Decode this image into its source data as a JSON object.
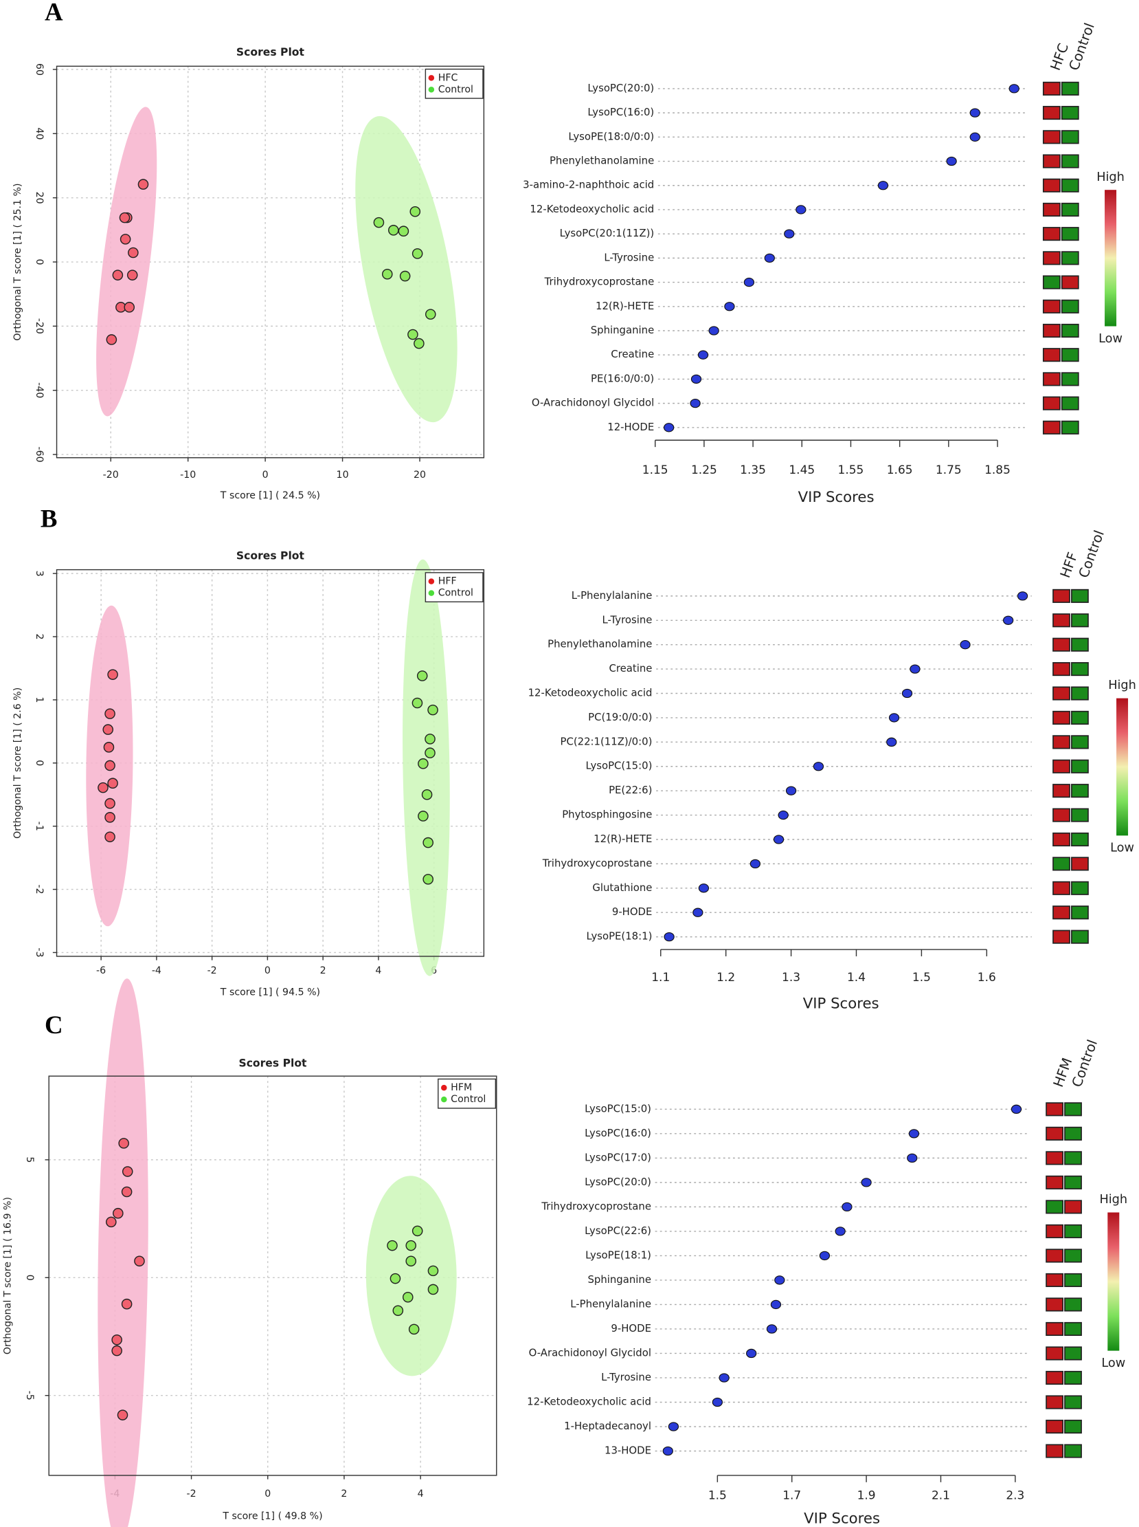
{
  "panel_labels": [
    "A",
    "B",
    "C"
  ],
  "chart_data": [
    {
      "type": "scatter",
      "title": "Scores Plot",
      "x_label": "T score [1] ( 24.5 %)",
      "y_label": "Orthogonal T score [1] ( 25.1 %)",
      "xlim": [
        -27,
        28.3
      ],
      "ylim": [
        -61,
        61
      ],
      "xticks": [
        -20,
        -10,
        0,
        10,
        20
      ],
      "yticks": [
        -60,
        -40,
        -20,
        0,
        20,
        40,
        60
      ],
      "grid": true,
      "series": [
        {
          "name": "HFC",
          "color": "#e41a1c",
          "point_color": "#f0606f",
          "ellipse_color": "#f7b3cd",
          "x": [
            -15.8,
            -17.9,
            -18.2,
            -18.1,
            -17.1,
            -19.1,
            -17.2,
            -18.7,
            -17.6,
            -19.9
          ],
          "values": [
            24.2,
            13.8,
            13.8,
            7.1,
            2.9,
            -4.1,
            -4.1,
            -14.1,
            -14.1,
            -24.2
          ]
        },
        {
          "name": "Control",
          "color": "#4ddd3a",
          "point_color": "#8ee85f",
          "ellipse_color": "#cdf7b8",
          "x": [
            14.7,
            16.6,
            17.9,
            19.4,
            19.7,
            15.8,
            18.1,
            21.4,
            19.1,
            19.9
          ],
          "values": [
            12.3,
            9.9,
            9.6,
            15.7,
            2.6,
            -3.8,
            -4.4,
            -16.3,
            -22.6,
            -25.4
          ]
        }
      ]
    },
    {
      "type": "dot",
      "x_label": "VIP Scores",
      "xlim": [
        1.13,
        1.91
      ],
      "xticks": [
        1.15,
        1.25,
        1.35,
        1.45,
        1.55,
        1.65,
        1.75,
        1.85
      ],
      "color": "#2a3bd6",
      "categories": [
        "LysoPC(20:0)",
        "LysoPC(16:0)",
        "LysoPE(18:0/0:0)",
        "Phenylethanolamine",
        "3-amino-2-naphthoic acid",
        "12-Ketodeoxycholic acid",
        "LysoPC(20:1(11Z))",
        "L-Tyrosine",
        "Trihydroxycoprostane",
        "12(R)-HETE",
        "Sphinganine",
        "Creatine",
        "PE(16:0/0:0)",
        "O-Arachidonoyl Glycidol",
        "12-HODE"
      ],
      "values": [
        1.884,
        1.804,
        1.804,
        1.756,
        1.616,
        1.448,
        1.424,
        1.384,
        1.342,
        1.302,
        1.27,
        1.248,
        1.234,
        1.232,
        1.178
      ],
      "heatmap": {
        "columns": [
          "HFC",
          "Control"
        ],
        "high": "High",
        "low": "Low",
        "cells": [
          [
            "#c0191c",
            "#1b8a1b"
          ],
          [
            "#c0191c",
            "#1b8a1b"
          ],
          [
            "#c0191c",
            "#1b8a1b"
          ],
          [
            "#c0191c",
            "#1b8a1b"
          ],
          [
            "#c0191c",
            "#1b8a1b"
          ],
          [
            "#c0191c",
            "#1b8a1b"
          ],
          [
            "#c0191c",
            "#1b8a1b"
          ],
          [
            "#c0191c",
            "#1b8a1b"
          ],
          [
            "#1b8a1b",
            "#c0191c"
          ],
          [
            "#c0191c",
            "#1b8a1b"
          ],
          [
            "#c0191c",
            "#1b8a1b"
          ],
          [
            "#c0191c",
            "#1b8a1b"
          ],
          [
            "#c0191c",
            "#1b8a1b"
          ],
          [
            "#c0191c",
            "#1b8a1b"
          ],
          [
            "#c0191c",
            "#1b8a1b"
          ]
        ]
      }
    },
    {
      "type": "scatter",
      "title": "Scores Plot",
      "x_label": "T score [1] ( 94.5 %)",
      "y_label": "Orthogonal T score [1] ( 2.6 %)",
      "xlim": [
        -7.6,
        7.8
      ],
      "ylim": [
        -3.06,
        3.06
      ],
      "xticks": [
        -6,
        -4,
        -2,
        0,
        2,
        4,
        6
      ],
      "yticks": [
        -3,
        -2,
        -1,
        0,
        1,
        2,
        3
      ],
      "grid": true,
      "series": [
        {
          "name": "HFF",
          "color": "#e41a1c",
          "point_color": "#f0606f",
          "ellipse_color": "#f7b3cd",
          "x": [
            -5.58,
            -5.68,
            -5.75,
            -5.72,
            -5.68,
            -5.58,
            -5.93,
            -5.68,
            -5.68,
            -5.68
          ],
          "values": [
            1.4,
            0.78,
            0.53,
            0.25,
            -0.04,
            -0.32,
            -0.39,
            -0.64,
            -0.86,
            -1.17
          ]
        },
        {
          "name": "Control",
          "color": "#4ddd3a",
          "point_color": "#8ee85f",
          "ellipse_color": "#cdf7b8",
          "x": [
            5.58,
            5.4,
            5.96,
            5.86,
            5.86,
            5.61,
            5.75,
            5.61,
            5.79,
            5.79
          ],
          "values": [
            1.38,
            0.95,
            0.84,
            0.38,
            0.16,
            -0.01,
            -0.5,
            -0.84,
            -1.26,
            -1.84
          ]
        }
      ]
    },
    {
      "type": "dot",
      "x_label": "VIP Scores",
      "xlim": [
        1.084,
        1.669
      ],
      "xticks": [
        1.1,
        1.2,
        1.3,
        1.4,
        1.5,
        1.6
      ],
      "color": "#2a3bd6",
      "categories": [
        "L-Phenylalanine",
        "L-Tyrosine",
        "Phenylethanolamine",
        "Creatine",
        "12-Ketodeoxycholic acid",
        "PC(19:0/0:0)",
        "PC(22:1(11Z)/0:0)",
        "LysoPC(15:0)",
        "PE(22:6)",
        "Phytosphingosine",
        "12(R)-HETE",
        "Trihydroxycoprostane",
        "Glutathione",
        "9-HODE",
        "LysoPE(18:1)"
      ],
      "values": [
        1.655,
        1.633,
        1.567,
        1.49,
        1.478,
        1.458,
        1.454,
        1.342,
        1.3,
        1.288,
        1.281,
        1.245,
        1.166,
        1.157,
        1.113
      ],
      "heatmap": {
        "columns": [
          "HFF",
          "Control"
        ],
        "high": "High",
        "low": "Low",
        "cells": [
          [
            "#c0191c",
            "#1b8a1b"
          ],
          [
            "#c0191c",
            "#1b8a1b"
          ],
          [
            "#c0191c",
            "#1b8a1b"
          ],
          [
            "#c0191c",
            "#1b8a1b"
          ],
          [
            "#c0191c",
            "#1b8a1b"
          ],
          [
            "#c0191c",
            "#1b8a1b"
          ],
          [
            "#c0191c",
            "#1b8a1b"
          ],
          [
            "#c0191c",
            "#1b8a1b"
          ],
          [
            "#c0191c",
            "#1b8a1b"
          ],
          [
            "#c0191c",
            "#1b8a1b"
          ],
          [
            "#c0191c",
            "#1b8a1b"
          ],
          [
            "#1b8a1b",
            "#c0191c"
          ],
          [
            "#c0191c",
            "#1b8a1b"
          ],
          [
            "#c0191c",
            "#1b8a1b"
          ],
          [
            "#c0191c",
            "#1b8a1b"
          ]
        ]
      }
    },
    {
      "type": "scatter",
      "title": "Scores Plot",
      "x_label": "T score [1] ( 49.8 %)",
      "y_label": "Orthogonal T score [1] ( 16.9 %)",
      "xlim": [
        -5.73,
        5.99
      ],
      "ylim": [
        -8.39,
        8.55
      ],
      "xticks": [
        -4,
        -2,
        0,
        2,
        4
      ],
      "yticks": [
        -5,
        0,
        5
      ],
      "grid": true,
      "series": [
        {
          "name": "HFM",
          "color": "#e41a1c",
          "point_color": "#f0606f",
          "ellipse_color": "#f7b3cd",
          "x": [
            -3.77,
            -3.67,
            -3.69,
            -3.92,
            -4.1,
            -3.36,
            -3.69,
            -3.95,
            -3.95,
            -3.8
          ],
          "values": [
            5.7,
            4.5,
            3.64,
            2.73,
            2.36,
            0.7,
            -1.12,
            -2.64,
            -3.1,
            -5.83
          ]
        },
        {
          "name": "Control",
          "color": "#4ddd3a",
          "point_color": "#8ee85f",
          "ellipse_color": "#cdf7b8",
          "x": [
            3.92,
            3.26,
            3.75,
            3.75,
            4.33,
            3.34,
            4.33,
            3.67,
            3.41,
            3.83
          ],
          "values": [
            1.98,
            1.36,
            1.36,
            0.7,
            0.29,
            -0.04,
            -0.5,
            -0.83,
            -1.4,
            -2.19
          ]
        }
      ]
    },
    {
      "type": "dot",
      "x_label": "VIP Scores",
      "xlim": [
        1.33,
        2.339
      ],
      "xticks": [
        1.5,
        1.7,
        1.9,
        2.1,
        2.3
      ],
      "color": "#2a3bd6",
      "categories": [
        "LysoPC(15:0)",
        "LysoPC(16:0)",
        "LysoPC(17:0)",
        "LysoPC(20:0)",
        "Trihydroxycoprostane",
        "LysoPC(22:6)",
        "LysoPE(18:1)",
        "Sphinganine",
        "L-Phenylalanine",
        "9-HODE",
        "O-Arachidonoyl Glycidol",
        "L-Tyrosine",
        "12-Ketodeoxycholic acid",
        "1-Heptadecanoyl",
        "13-HODE"
      ],
      "values": [
        2.303,
        2.028,
        2.023,
        1.9,
        1.848,
        1.83,
        1.788,
        1.667,
        1.657,
        1.646,
        1.591,
        1.518,
        1.5,
        1.382,
        1.367
      ],
      "heatmap": {
        "columns": [
          "HFM",
          "Control"
        ],
        "high": "High",
        "low": "Low",
        "cells": [
          [
            "#c0191c",
            "#1b8a1b"
          ],
          [
            "#c0191c",
            "#1b8a1b"
          ],
          [
            "#c0191c",
            "#1b8a1b"
          ],
          [
            "#c0191c",
            "#1b8a1b"
          ],
          [
            "#1b8a1b",
            "#c0191c"
          ],
          [
            "#c0191c",
            "#1b8a1b"
          ],
          [
            "#c0191c",
            "#1b8a1b"
          ],
          [
            "#c0191c",
            "#1b8a1b"
          ],
          [
            "#c0191c",
            "#1b8a1b"
          ],
          [
            "#c0191c",
            "#1b8a1b"
          ],
          [
            "#c0191c",
            "#1b8a1b"
          ],
          [
            "#c0191c",
            "#1b8a1b"
          ],
          [
            "#c0191c",
            "#1b8a1b"
          ],
          [
            "#c0191c",
            "#1b8a1b"
          ],
          [
            "#c0191c",
            "#1b8a1b"
          ]
        ]
      }
    }
  ]
}
